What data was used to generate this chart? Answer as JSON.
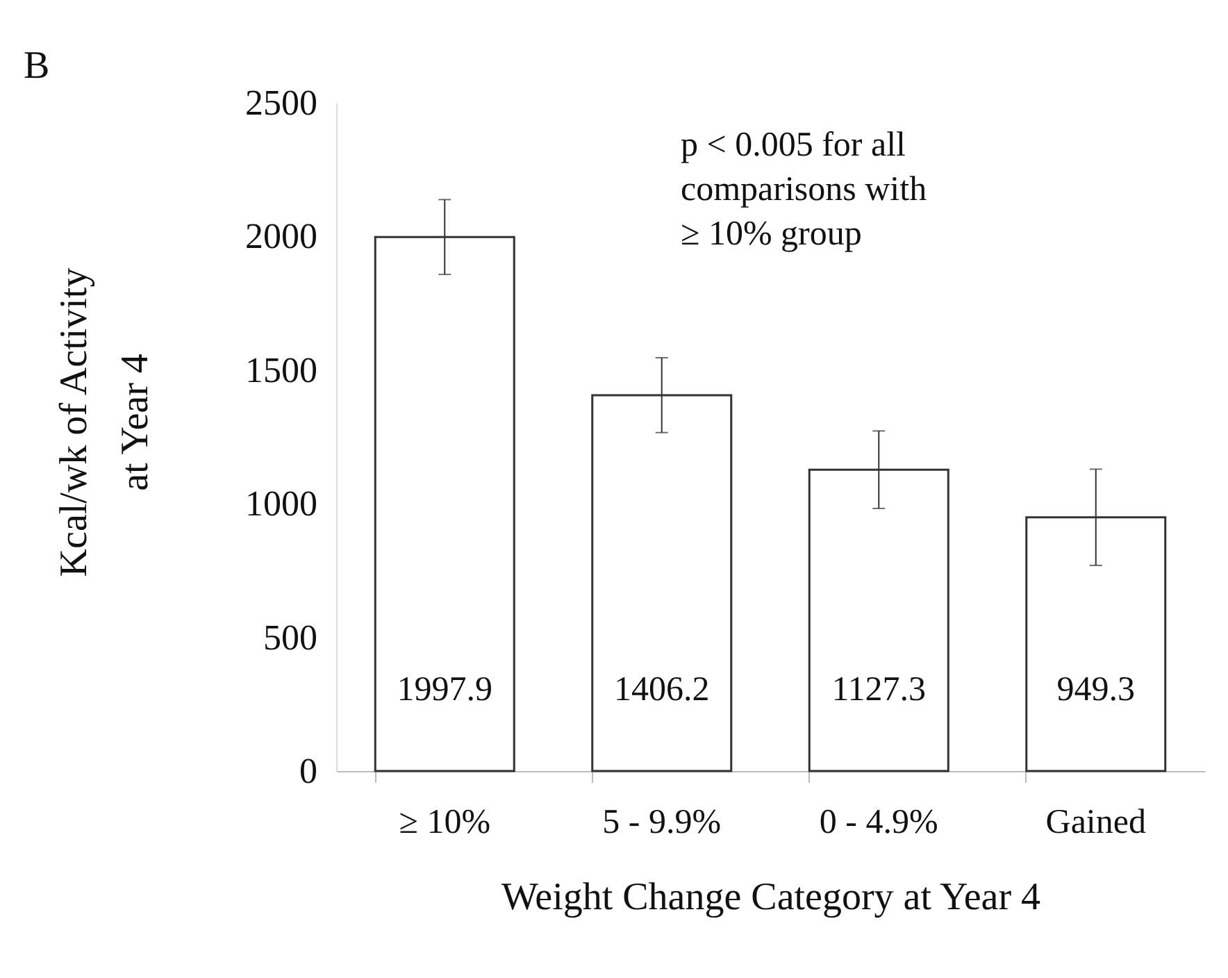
{
  "chart_data": {
    "type": "bar",
    "xlabel": "Weight Change Category at Year 4",
    "ylabel": "Kcal/wk of Activity\nat Year 4",
    "categories": [
      "≥ 10%",
      "5 - 9.9%",
      "0 - 4.9%",
      "Gained"
    ],
    "values": [
      1997.9,
      1406.2,
      1127.3,
      949.3
    ],
    "errors": [
      140,
      140,
      145,
      180
    ],
    "color": "#ffffff",
    "data_labels": true,
    "ylim": [
      0,
      2500
    ],
    "yticks": [
      0,
      500,
      1000,
      1500,
      2000,
      2500
    ],
    "grid": false,
    "annotations": [
      "B",
      "p < 0.005 for all\ncomparisons with\n≥ 10% group"
    ]
  }
}
